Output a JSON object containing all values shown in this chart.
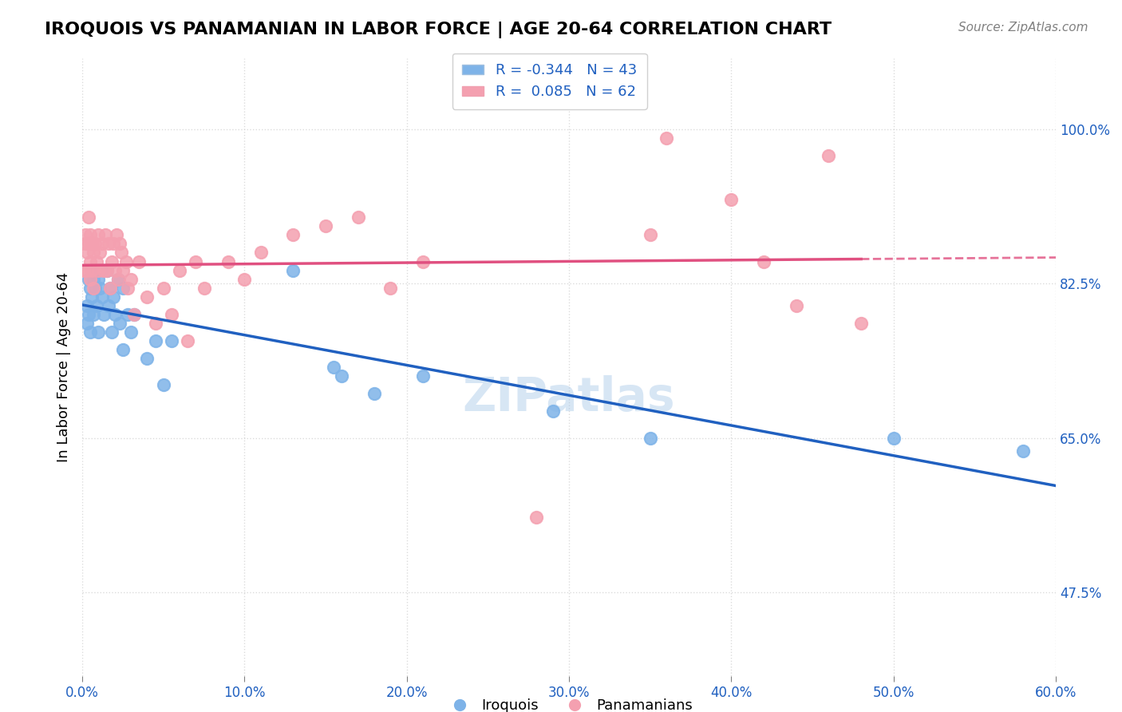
{
  "title": "IROQUOIS VS PANAMANIAN IN LABOR FORCE | AGE 20-64 CORRELATION CHART",
  "source": "Source: ZipAtlas.com",
  "ylabel": "In Labor Force | Age 20-64",
  "xlabel_ticks": [
    "0.0%",
    "10.0%",
    "20.0%",
    "30.0%",
    "40.0%",
    "50.0%",
    "60.0%"
  ],
  "xlabel_vals": [
    0.0,
    0.1,
    0.2,
    0.3,
    0.4,
    0.5,
    0.6
  ],
  "ytick_labels": [
    "47.5%",
    "65.0%",
    "82.5%",
    "100.0%"
  ],
  "ytick_vals": [
    0.475,
    0.65,
    0.825,
    1.0
  ],
  "xlim": [
    0.0,
    0.6
  ],
  "ylim": [
    0.38,
    1.08
  ],
  "legend_iroquois": "R = -0.344   N = 43",
  "legend_panamanian": "R =  0.085   N = 62",
  "iroquois_color": "#7EB3E8",
  "panamanian_color": "#F4A0B0",
  "trend_iroquois_color": "#2060C0",
  "trend_panamanian_color": "#E05080",
  "watermark": "ZIPatlas",
  "iroquois_x": [
    0.003,
    0.003,
    0.004,
    0.004,
    0.005,
    0.005,
    0.006,
    0.006,
    0.007,
    0.007,
    0.008,
    0.009,
    0.01,
    0.01,
    0.011,
    0.012,
    0.013,
    0.015,
    0.016,
    0.017,
    0.018,
    0.019,
    0.02,
    0.022,
    0.023,
    0.025,
    0.025,
    0.028,
    0.03,
    0.032,
    0.04,
    0.045,
    0.05,
    0.055,
    0.13,
    0.155,
    0.16,
    0.18,
    0.21,
    0.29,
    0.35,
    0.5,
    0.58
  ],
  "iroquois_y": [
    0.78,
    0.8,
    0.83,
    0.79,
    0.82,
    0.77,
    0.84,
    0.81,
    0.83,
    0.79,
    0.82,
    0.8,
    0.83,
    0.77,
    0.82,
    0.81,
    0.79,
    0.84,
    0.8,
    0.82,
    0.77,
    0.81,
    0.79,
    0.83,
    0.78,
    0.82,
    0.75,
    0.79,
    0.77,
    0.79,
    0.74,
    0.76,
    0.71,
    0.76,
    0.84,
    0.73,
    0.72,
    0.7,
    0.72,
    0.68,
    0.65,
    0.65,
    0.635
  ],
  "panamanian_x": [
    0.001,
    0.002,
    0.002,
    0.003,
    0.003,
    0.004,
    0.004,
    0.005,
    0.005,
    0.005,
    0.006,
    0.006,
    0.007,
    0.007,
    0.008,
    0.009,
    0.01,
    0.01,
    0.011,
    0.012,
    0.013,
    0.014,
    0.015,
    0.016,
    0.017,
    0.018,
    0.019,
    0.02,
    0.021,
    0.022,
    0.023,
    0.024,
    0.025,
    0.027,
    0.028,
    0.03,
    0.032,
    0.035,
    0.04,
    0.045,
    0.05,
    0.055,
    0.06,
    0.065,
    0.07,
    0.075,
    0.09,
    0.1,
    0.11,
    0.13,
    0.15,
    0.17,
    0.19,
    0.21,
    0.28,
    0.35,
    0.36,
    0.4,
    0.42,
    0.44,
    0.46,
    0.48
  ],
  "panamanian_y": [
    0.84,
    0.87,
    0.88,
    0.84,
    0.86,
    0.9,
    0.87,
    0.85,
    0.83,
    0.88,
    0.87,
    0.84,
    0.86,
    0.82,
    0.87,
    0.85,
    0.88,
    0.84,
    0.86,
    0.87,
    0.84,
    0.88,
    0.84,
    0.87,
    0.82,
    0.85,
    0.87,
    0.84,
    0.88,
    0.83,
    0.87,
    0.86,
    0.84,
    0.85,
    0.82,
    0.83,
    0.79,
    0.85,
    0.81,
    0.78,
    0.82,
    0.79,
    0.84,
    0.76,
    0.85,
    0.82,
    0.85,
    0.83,
    0.86,
    0.88,
    0.89,
    0.9,
    0.82,
    0.85,
    0.56,
    0.88,
    0.99,
    0.92,
    0.85,
    0.8,
    0.97,
    0.78
  ]
}
